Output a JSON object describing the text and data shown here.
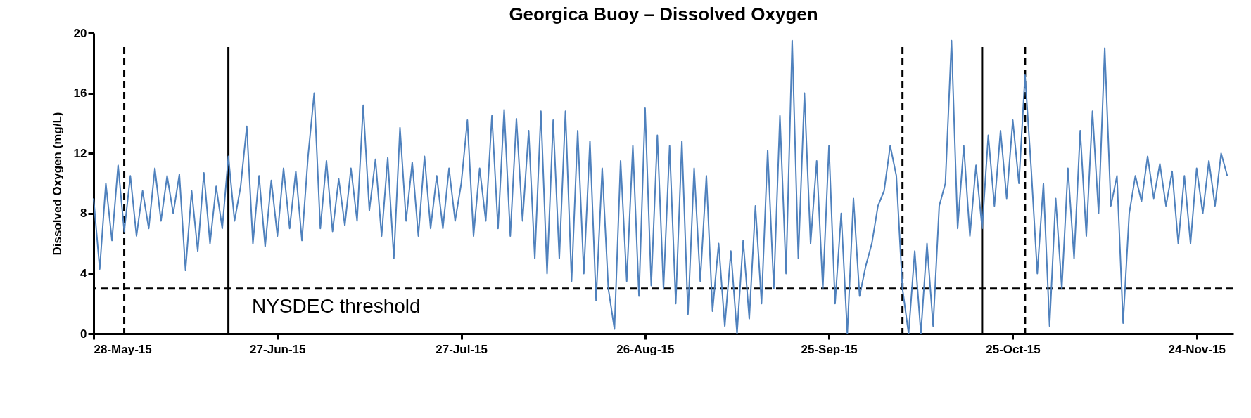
{
  "chart_data": {
    "type": "line",
    "title": "Georgica Buoy – Dissolved Oxygen",
    "ylabel": "Dissolved Oxygen (mg/L)",
    "x": [
      "2015-05-28",
      "2015-05-29",
      "2015-05-30",
      "2015-05-31",
      "2015-06-01",
      "2015-06-02",
      "2015-06-03",
      "2015-06-04",
      "2015-06-05",
      "2015-06-06",
      "2015-06-07",
      "2015-06-08",
      "2015-06-09",
      "2015-06-10",
      "2015-06-11",
      "2015-06-12",
      "2015-06-13",
      "2015-06-14",
      "2015-06-15",
      "2015-06-16",
      "2015-06-17",
      "2015-06-18",
      "2015-06-19",
      "2015-06-20",
      "2015-06-21",
      "2015-06-22",
      "2015-06-23",
      "2015-06-24",
      "2015-06-25",
      "2015-06-26",
      "2015-06-27",
      "2015-06-28",
      "2015-06-29",
      "2015-06-30",
      "2015-07-01",
      "2015-07-02",
      "2015-07-03",
      "2015-07-04",
      "2015-07-05",
      "2015-07-06",
      "2015-07-07",
      "2015-07-08",
      "2015-07-09",
      "2015-07-10",
      "2015-07-11",
      "2015-07-12",
      "2015-07-13",
      "2015-07-14",
      "2015-07-15",
      "2015-07-16",
      "2015-07-17",
      "2015-07-18",
      "2015-07-19",
      "2015-07-20",
      "2015-07-21",
      "2015-07-22",
      "2015-07-23",
      "2015-07-24",
      "2015-07-25",
      "2015-07-26",
      "2015-07-27",
      "2015-07-28",
      "2015-07-29",
      "2015-07-30",
      "2015-07-31",
      "2015-08-01",
      "2015-08-02",
      "2015-08-03",
      "2015-08-04",
      "2015-08-05",
      "2015-08-06",
      "2015-08-07",
      "2015-08-08",
      "2015-08-09",
      "2015-08-10",
      "2015-08-11",
      "2015-08-12",
      "2015-08-13",
      "2015-08-14",
      "2015-08-15",
      "2015-08-16",
      "2015-08-17",
      "2015-08-18",
      "2015-08-19",
      "2015-08-20",
      "2015-08-21",
      "2015-08-22",
      "2015-08-23",
      "2015-08-24",
      "2015-08-25",
      "2015-08-26",
      "2015-08-27",
      "2015-08-28",
      "2015-08-29",
      "2015-08-30",
      "2015-08-31",
      "2015-09-01",
      "2015-09-02",
      "2015-09-03",
      "2015-09-04",
      "2015-09-05",
      "2015-09-06",
      "2015-09-07",
      "2015-09-08",
      "2015-09-09",
      "2015-09-10",
      "2015-09-11",
      "2015-09-12",
      "2015-09-13",
      "2015-09-14",
      "2015-09-15",
      "2015-09-16",
      "2015-09-17",
      "2015-09-18",
      "2015-09-19",
      "2015-09-20",
      "2015-09-21",
      "2015-09-22",
      "2015-09-23",
      "2015-09-24",
      "2015-09-25",
      "2015-09-26",
      "2015-09-27",
      "2015-09-28",
      "2015-09-29",
      "2015-09-30",
      "2015-10-01",
      "2015-10-02",
      "2015-10-03",
      "2015-10-04",
      "2015-10-05",
      "2015-10-06",
      "2015-10-07",
      "2015-10-08",
      "2015-10-09",
      "2015-10-10",
      "2015-10-11",
      "2015-10-12",
      "2015-10-13",
      "2015-10-14",
      "2015-10-15",
      "2015-10-16",
      "2015-10-17",
      "2015-10-18",
      "2015-10-19",
      "2015-10-20",
      "2015-10-21",
      "2015-10-22",
      "2015-10-23",
      "2015-10-24",
      "2015-10-25",
      "2015-10-26",
      "2015-10-27",
      "2015-10-28",
      "2015-10-29",
      "2015-10-30",
      "2015-10-31",
      "2015-11-01",
      "2015-11-02",
      "2015-11-03",
      "2015-11-04",
      "2015-11-05",
      "2015-11-06",
      "2015-11-07",
      "2015-11-08",
      "2015-11-09",
      "2015-11-10",
      "2015-11-11",
      "2015-11-12",
      "2015-11-13",
      "2015-11-14",
      "2015-11-15",
      "2015-11-16",
      "2015-11-17",
      "2015-11-18",
      "2015-11-19",
      "2015-11-20",
      "2015-11-21",
      "2015-11-22",
      "2015-11-23",
      "2015-11-24",
      "2015-11-25",
      "2015-11-26",
      "2015-11-27",
      "2015-11-28",
      "2015-11-29"
    ],
    "series": [
      {
        "color": "#4f81bd",
        "values": [
          9,
          4.3,
          10,
          6.2,
          11.2,
          6.8,
          10.5,
          6.5,
          9.5,
          7,
          11,
          7.5,
          10.5,
          8,
          10.6,
          4.2,
          9.5,
          5.5,
          10.7,
          6,
          9.8,
          7,
          11.8,
          7.5,
          9.8,
          13.8,
          6,
          10.5,
          5.8,
          10.2,
          6.5,
          11,
          7,
          10.8,
          6.2,
          11.8,
          16,
          7,
          11.5,
          6.8,
          10.3,
          7.2,
          11,
          7.5,
          15.2,
          8.2,
          11.6,
          6.5,
          11.7,
          5,
          13.7,
          7.5,
          11.4,
          6.5,
          11.8,
          7,
          10.5,
          7,
          11,
          7.5,
          10,
          14.2,
          6.5,
          11,
          7.5,
          14.5,
          7,
          14.9,
          6.5,
          14.3,
          7.5,
          13.5,
          5,
          14.8,
          4,
          14.2,
          5,
          14.8,
          3.5,
          13.5,
          4,
          12.8,
          2.2,
          11,
          3,
          0.3,
          11.5,
          3.5,
          12.5,
          2.5,
          15,
          3.2,
          13.2,
          3,
          12.5,
          2,
          12.8,
          1.3,
          11,
          3.5,
          10.5,
          1.5,
          6,
          0.5,
          5.5,
          0,
          6.2,
          1,
          8.5,
          2,
          12.2,
          3,
          14.5,
          4,
          19.5,
          5,
          16,
          6,
          11.5,
          3,
          12.5,
          2,
          8,
          0,
          9,
          2.5,
          4.5,
          6,
          8.5,
          9.5,
          12.5,
          10.5,
          3,
          0,
          5.5,
          0,
          6,
          0.5,
          8.5,
          10,
          19.5,
          7,
          12.5,
          6.5,
          11.2,
          7,
          13.2,
          8.5,
          13.5,
          9,
          14.2,
          10,
          17.2,
          11,
          4,
          10,
          0.5,
          9,
          3,
          11,
          5,
          13.5,
          6.5,
          14.8,
          8,
          19,
          8.5,
          10.5,
          0.7,
          8,
          10.5,
          8.8,
          11.8,
          9,
          11.3,
          8.5,
          10.8,
          6,
          10.5,
          6,
          11,
          8,
          11.5,
          8.5,
          12,
          10.5
        ]
      }
    ],
    "xlim": [
      "2015-05-28",
      "2015-11-30"
    ],
    "xticks": [
      {
        "value": "2015-05-28",
        "label": "28-May-15"
      },
      {
        "value": "2015-06-27",
        "label": "27-Jun-15"
      },
      {
        "value": "2015-07-27",
        "label": "27-Jul-15"
      },
      {
        "value": "2015-08-26",
        "label": "26-Aug-15"
      },
      {
        "value": "2015-09-25",
        "label": "25-Sep-15"
      },
      {
        "value": "2015-10-25",
        "label": "25-Oct-15"
      },
      {
        "value": "2015-11-24",
        "label": "24-Nov-15"
      }
    ],
    "ylim": [
      0,
      20
    ],
    "yticks": [
      0,
      4,
      8,
      12,
      16,
      20
    ],
    "grid": false,
    "marker": "none",
    "line_style": "solid",
    "ref_lines": [
      {
        "axis": "y",
        "value": 3,
        "label": "NYSDEC threshold",
        "line_style": "dashed",
        "color": "#000000"
      },
      {
        "axis": "x",
        "value": "2015-06-02",
        "line_style": "dashed",
        "color": "#000000"
      },
      {
        "axis": "x",
        "value": "2015-06-19",
        "line_style": "solid",
        "color": "#000000"
      },
      {
        "axis": "x",
        "value": "2015-10-07",
        "line_style": "dashed",
        "color": "#000000"
      },
      {
        "axis": "x",
        "value": "2015-10-20",
        "line_style": "solid",
        "color": "#000000"
      },
      {
        "axis": "x",
        "value": "2015-10-27",
        "line_style": "dashed",
        "color": "#000000"
      }
    ]
  }
}
